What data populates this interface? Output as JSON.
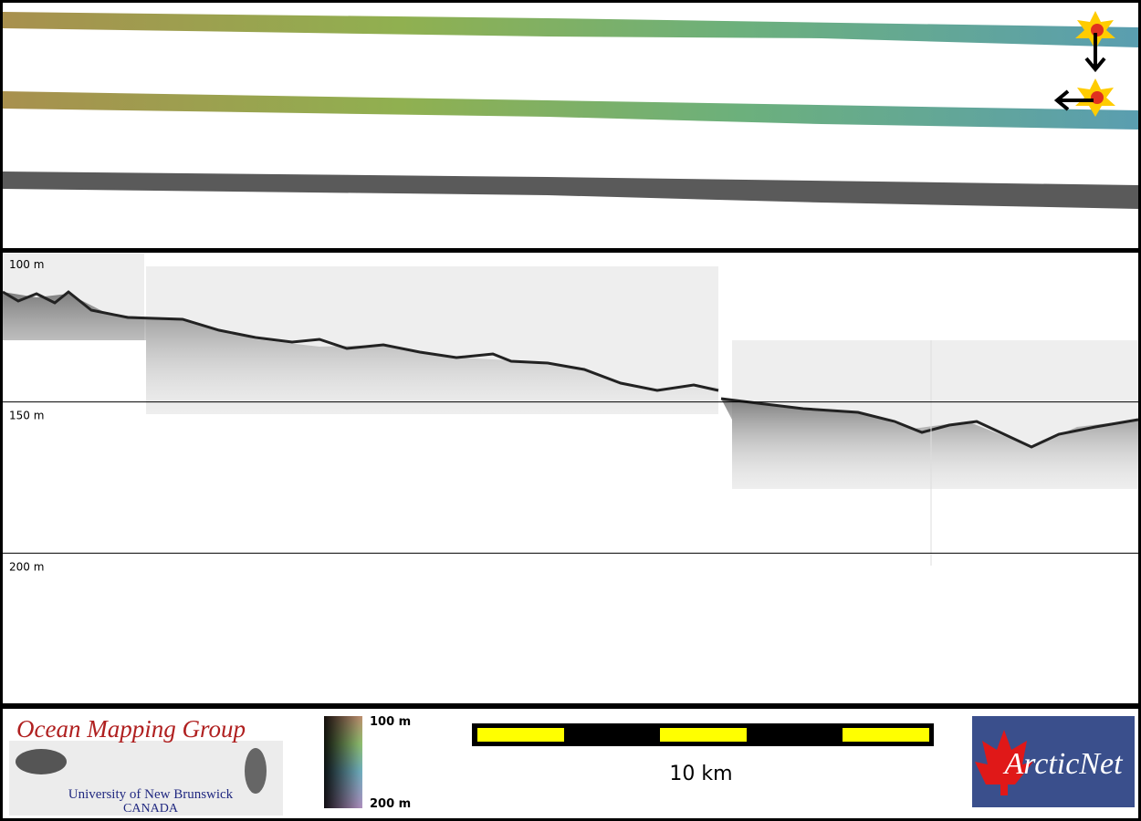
{
  "profile": {
    "ylim": [
      100,
      250
    ],
    "yticks": [
      {
        "value": 100,
        "label": "100 m"
      },
      {
        "value": 150,
        "label": "150 m"
      },
      {
        "value": 200,
        "label": "200 m"
      }
    ]
  },
  "footer": {
    "logo_title": "Ocean Mapping Group",
    "logo_university": "University of New Brunswick",
    "logo_country": "CANADA",
    "colorbar_top": "100 m",
    "colorbar_bottom": "200 m",
    "scale_label": "10 km",
    "partner_logo": "ArcticNet"
  }
}
